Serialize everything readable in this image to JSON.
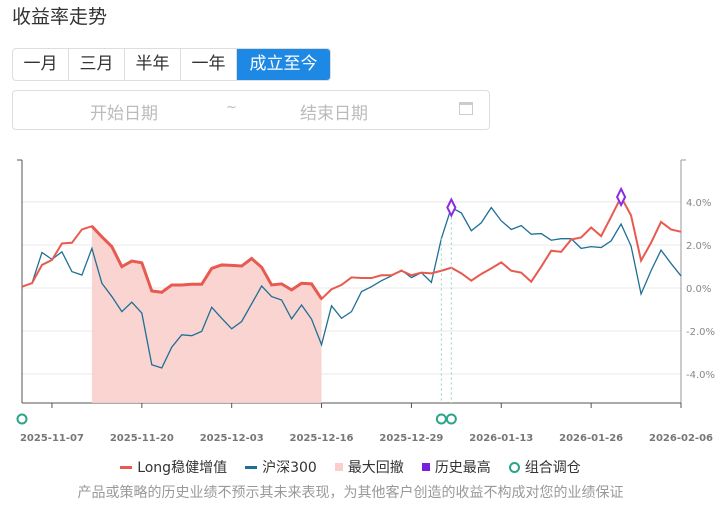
{
  "header": {
    "title": "收益率走势"
  },
  "tabs": [
    {
      "label": "一月"
    },
    {
      "label": "三月"
    },
    {
      "label": "半年"
    },
    {
      "label": "一年"
    },
    {
      "label": "成立至今",
      "active": true
    }
  ],
  "date_range": {
    "start_placeholder": "开始日期",
    "separator": "~",
    "end_placeholder": "结束日期",
    "icon": "calendar-icon"
  },
  "colors": {
    "strategy": "#e85a4f",
    "benchmark": "#1f6f96",
    "drawdown": "#f8cfcc",
    "high": "#8a2be2",
    "rebalance": "#2aa58a"
  },
  "chart_data": {
    "type": "line",
    "x_ticks": [
      {
        "index": 3,
        "label": "2025-11-07"
      },
      {
        "index": 12,
        "label": "2025-11-20"
      },
      {
        "index": 21,
        "label": "2025-12-03"
      },
      {
        "index": 30,
        "label": "2025-12-16"
      },
      {
        "index": 39,
        "label": "2025-12-29"
      },
      {
        "index": 48,
        "label": "2026-01-13"
      },
      {
        "index": 57,
        "label": "2026-01-26"
      },
      {
        "index": 66,
        "label": "2026-02-06"
      }
    ],
    "y_ticks": [
      {
        "value": 4,
        "label": "4.0%"
      },
      {
        "value": 2,
        "label": "2.0%"
      },
      {
        "value": 0,
        "label": "0.0%"
      },
      {
        "value": -2,
        "label": "-2.0%"
      },
      {
        "value": -4,
        "label": "-4.0%"
      }
    ],
    "ylim": [
      -5.35,
      5.95
    ],
    "series": [
      {
        "name": "Long稳健增值",
        "values": [
          0.06,
          0.22,
          1.07,
          1.3,
          2.07,
          2.1,
          2.72,
          2.87,
          2.38,
          1.92,
          0.99,
          1.25,
          1.17,
          -0.14,
          -0.2,
          0.14,
          0.14,
          0.17,
          0.17,
          0.91,
          1.07,
          1.05,
          1.02,
          1.37,
          0.96,
          0.14,
          0.19,
          -0.09,
          0.22,
          0.19,
          -0.51,
          -0.06,
          0.14,
          0.49,
          0.46,
          0.46,
          0.59,
          0.59,
          0.8,
          0.59,
          0.71,
          0.68,
          0.8,
          0.94,
          0.68,
          0.34,
          0.65,
          0.91,
          1.19,
          0.8,
          0.71,
          0.29,
          0.99,
          1.73,
          1.68,
          2.25,
          2.35,
          2.81,
          2.41,
          3.31,
          4.23,
          3.37,
          1.27,
          2.1,
          3.07,
          2.72,
          2.61
        ]
      },
      {
        "name": "沪深300",
        "values": [
          0.06,
          0.22,
          1.65,
          1.33,
          1.68,
          0.76,
          0.6,
          1.84,
          0.22,
          -0.4,
          -1.1,
          -0.66,
          -1.17,
          -3.57,
          -3.72,
          -2.75,
          -2.18,
          -2.22,
          -2.02,
          -0.9,
          -1.41,
          -1.9,
          -1.56,
          -0.74,
          0.09,
          -0.4,
          -0.56,
          -1.44,
          -0.79,
          -1.45,
          -2.64,
          -0.83,
          -1.41,
          -1.1,
          -0.17,
          0.06,
          0.34,
          0.56,
          0.83,
          0.48,
          0.71,
          0.26,
          2.3,
          3.74,
          3.49,
          2.66,
          3.03,
          3.74,
          3.12,
          2.72,
          2.9,
          2.5,
          2.53,
          2.22,
          2.29,
          2.29,
          1.84,
          1.92,
          1.88,
          2.19,
          2.97,
          1.95,
          -0.28,
          0.8,
          1.76,
          1.14,
          0.56
        ]
      }
    ],
    "max_drawdown": {
      "name": "最大回撤",
      "start_index": 7,
      "end_index": 30
    },
    "historical_high": {
      "name": "历史最高",
      "points": [
        {
          "series": 1,
          "index": 43
        },
        {
          "series": 0,
          "index": 60
        }
      ]
    },
    "rebalance": {
      "name": "组合调仓",
      "indices": [
        0,
        42,
        43
      ]
    }
  },
  "legend": [
    {
      "label": "Long稳健增值"
    },
    {
      "label": "沪深300"
    },
    {
      "label": "最大回撤"
    },
    {
      "label": "历史最高"
    },
    {
      "label": "组合调仓"
    }
  ],
  "footer": "产品或策略的历史业绩不预示其未来表现，为其他客户创造的收益不构成对您的业绩保证"
}
